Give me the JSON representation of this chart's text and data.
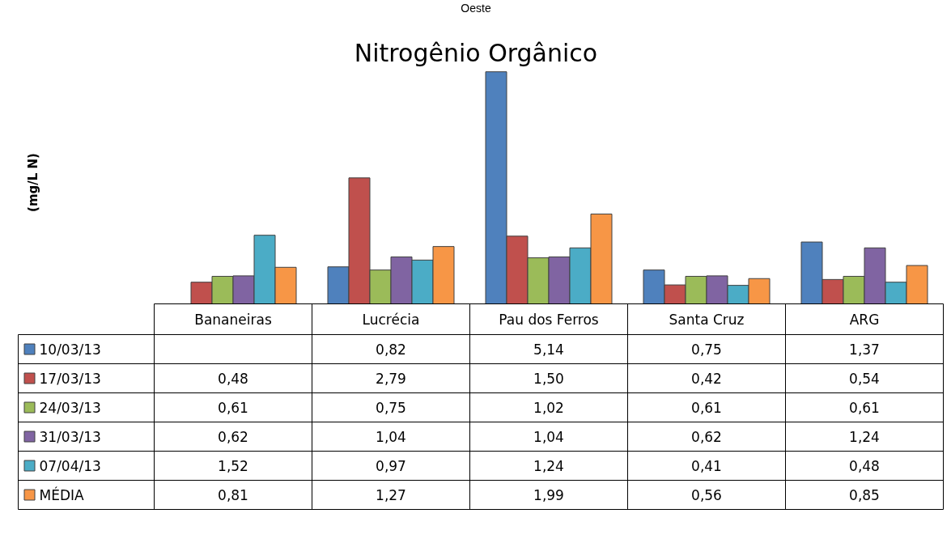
{
  "chart_data": {
    "type": "bar",
    "title": "Nitrogênio Orgânico",
    "annotations": [
      "Oeste",
      "(mg/L N)"
    ],
    "categories": [
      "Bananeiras",
      "Lucrécia",
      "Pau dos Ferros",
      "Santa Cruz",
      "ARG"
    ],
    "series": [
      {
        "name": "10/03/13",
        "color": "#4f81bd",
        "values": [
          null,
          0.82,
          5.14,
          0.75,
          1.37
        ],
        "value_labels": [
          null,
          "0,82",
          "5,14",
          "0,75",
          "1,37"
        ]
      },
      {
        "name": "17/03/13",
        "color": "#c0504d",
        "values": [
          0.48,
          2.79,
          1.5,
          0.42,
          0.54
        ],
        "value_labels": [
          "0,48",
          "2,79",
          "1,50",
          "0,42",
          "0,54"
        ]
      },
      {
        "name": "24/03/13",
        "color": "#9bbb59",
        "values": [
          0.61,
          0.75,
          1.02,
          0.61,
          0.61
        ],
        "value_labels": [
          "0,61",
          "0,75",
          "1,02",
          "0,61",
          "0,61"
        ]
      },
      {
        "name": "31/03/13",
        "color": "#8064a2",
        "values": [
          0.62,
          1.04,
          1.04,
          0.62,
          1.24
        ],
        "value_labels": [
          "0,62",
          "1,04",
          "1,04",
          "0,62",
          "1,24"
        ]
      },
      {
        "name": "07/04/13",
        "color": "#4bacc6",
        "values": [
          1.52,
          0.97,
          1.24,
          0.41,
          0.48
        ],
        "value_labels": [
          "1,52",
          "0,97",
          "1,24",
          "0,41",
          "0,48"
        ]
      },
      {
        "name": "MÉDIA",
        "color": "#f79646",
        "values": [
          0.81,
          1.27,
          1.99,
          0.56,
          0.85
        ],
        "value_labels": [
          "0,81",
          "1,27",
          "1,99",
          "0,56",
          "0,85"
        ]
      }
    ],
    "legend": "bottom left",
    "grid": false
  }
}
